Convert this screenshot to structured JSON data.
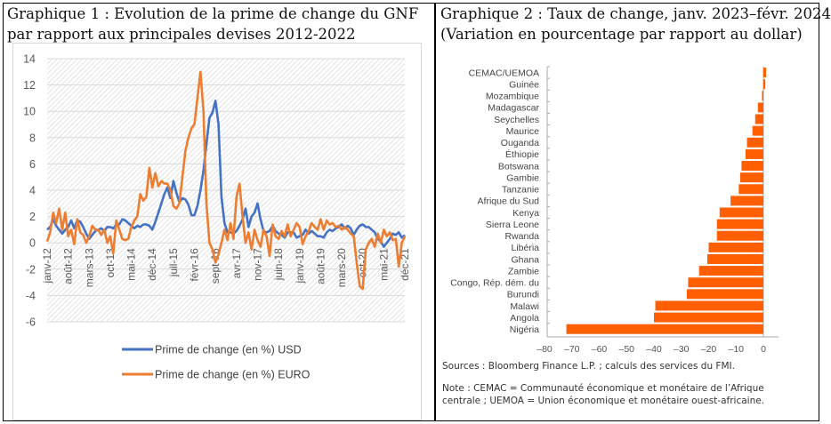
{
  "titles": {
    "chart1_line1": "Graphique 1 : Evolution de la prime de change du GNF",
    "chart1_line2": "par rapport aux principales devises 2012-2022",
    "chart2_line1": "Graphique 2 : Taux de change, janv. 2023–févr. 2024",
    "chart2_line2": "(Variation en pourcentage par rapport au dollar)"
  },
  "chart_data": [
    {
      "type": "line",
      "title": "Evolution de la prime de change du GNF par rapport aux principales devises 2012-2022",
      "xlabel": "",
      "ylabel": "",
      "ylim": [
        -6,
        14
      ],
      "yticks": [
        14,
        12,
        10,
        8,
        6,
        4,
        2,
        0,
        -2,
        -4,
        -6
      ],
      "xtick_labels": [
        "janv-12",
        "août-12",
        "mars-13",
        "oct-13",
        "mai-14",
        "déc-14",
        "juil-15",
        "févr-16",
        "sept-16",
        "avr-17",
        "nov-17",
        "juin-18",
        "janv-19",
        "août-19",
        "mars-20",
        "oct-20",
        "mai-21",
        "déc-21"
      ],
      "x_start": "janv-12",
      "x_step": "month",
      "grid": true,
      "legend_position": "bottom",
      "colors": {
        "usd": "#4472c4",
        "euro": "#ed7d31"
      },
      "series": [
        {
          "name": "Prime de change (en %) USD",
          "values": [
            1.0,
            1.2,
            1.8,
            1.3,
            1.0,
            0.7,
            1.0,
            1.2,
            1.7,
            1.1,
            1.7,
            1.6,
            1.2,
            0.7,
            0.3,
            0.6,
            0.9,
            1.0,
            1.1,
            0.9,
            1.2,
            1.2,
            1.1,
            1.4,
            1.4,
            1.8,
            1.7,
            1.5,
            1.3,
            1.1,
            1.3,
            1.2,
            1.4,
            1.4,
            1.3,
            1.0,
            1.6,
            2.3,
            3.0,
            3.7,
            4.2,
            3.4,
            4.7,
            3.8,
            3.1,
            3.4,
            3.3,
            2.9,
            2.1,
            2.1,
            2.8,
            4.0,
            5.5,
            7.5,
            9.5,
            9.9,
            10.8,
            9.0,
            3.5,
            1.5,
            0.8,
            0.8,
            0.7,
            0.9,
            1.3,
            1.8,
            2.6,
            1.2,
            2.0,
            2.3,
            3.0,
            1.8,
            0.9,
            0.8,
            0.9,
            1.3,
            0.9,
            0.7,
            0.6,
            0.4,
            0.8,
            0.8,
            0.8,
            0.4,
            0.5,
            0.6,
            1.0,
            0.7,
            0.9,
            0.7,
            0.5,
            0.5,
            0.4,
            0.8,
            1.0,
            0.9,
            1.1,
            1.2,
            1.4,
            1.1,
            1.3,
            1.1,
            0.6,
            1.0,
            1.3,
            1.4,
            1.2,
            1.2,
            1.0,
            0.8,
            0.3,
            0.1,
            -0.3,
            0.0,
            0.3,
            0.7,
            0.6,
            0.8,
            0.4,
            0.6
          ]
        },
        {
          "name": "Prime de change (en %) EURO",
          "values": [
            0.1,
            0.8,
            2.3,
            1.5,
            2.6,
            1.0,
            2.3,
            0.5,
            1.0,
            -0.1,
            1.8,
            0.8,
            0.6,
            0.0,
            0.5,
            1.3,
            1.0,
            1.0,
            0.6,
            1.0,
            0.0,
            0.5,
            -0.8,
            1.7,
            1.0,
            0.3,
            0.2,
            0.3,
            1.2,
            1.7,
            2.0,
            3.7,
            3.2,
            3.5,
            5.7,
            4.2,
            5.3,
            4.3,
            4.7,
            4.5,
            4.5,
            4.0,
            2.8,
            2.6,
            3.0,
            5.0,
            7.0,
            8.0,
            8.7,
            9.0,
            11.0,
            13.0,
            10.0,
            3.0,
            0.0,
            -0.5,
            -1.5,
            -0.9,
            0.0,
            1.0,
            0.2,
            1.5,
            0.3,
            3.5,
            4.5,
            2.0,
            0.0,
            0.8,
            -0.5,
            1.0,
            0.2,
            -0.3,
            1.0,
            0.5,
            -1.0,
            1.4,
            0.5,
            0.3,
            0.9,
            0.5,
            1.4,
            0.5,
            1.0,
            1.5,
            1.2,
            -0.1,
            0.5,
            0.9,
            1.5,
            1.2,
            1.0,
            1.8,
            1.0,
            1.7,
            1.4,
            1.5,
            1.2,
            1.3,
            1.0,
            1.2,
            1.0,
            0.7,
            0.5,
            -1.5,
            -3.3,
            -3.5,
            -0.5,
            0.0,
            0.3,
            -0.3,
            0.7,
            0.0,
            1.0,
            0.5,
            0.8,
            0.2,
            0.3,
            -1.8,
            0.0,
            0.5
          ]
        }
      ]
    },
    {
      "type": "bar",
      "orientation": "horizontal",
      "title": "Taux de change, janv. 2023–févr. 2024 (Variation en pourcentage par rapport au dollar)",
      "xlabel": "",
      "ylabel": "",
      "xlim": [
        -80,
        0
      ],
      "xticks": [
        "–80",
        "–70",
        "–60",
        "–50",
        "–40",
        "–30",
        "–20",
        "–10",
        "0"
      ],
      "grid": false,
      "color": "#ff5f00",
      "categories": [
        "CEMAC/UEMOA",
        "Guinée",
        "Mozambique",
        "Madagascar",
        "Seychelles",
        "Maurice",
        "Ouganda",
        "Éthiopie",
        "Botswana",
        "Gambie",
        "Tanzanie",
        "Afrique du Sud",
        "Kenya",
        "Sierra Leone",
        "Rwanda",
        "Libéria",
        "Ghana",
        "Zambie",
        "Congo, Rép. dém. du",
        "Burundi",
        "Malawi",
        "Angola",
        "Nigéria"
      ],
      "values": [
        1.0,
        0.7,
        -0.5,
        -2.0,
        -3.0,
        -4.0,
        -6.0,
        -6.5,
        -8.0,
        -8.5,
        -9.0,
        -12.0,
        -16.0,
        -17.0,
        -17.0,
        -20.0,
        -20.5,
        -23.5,
        -27.5,
        -28.0,
        -39.5,
        -40.0,
        -72.0
      ]
    }
  ],
  "footnotes": {
    "sources": "Sources : Bloomberg Finance L.P. ; calculs des services du FMI.",
    "note_line1": "Note : CEMAC = Communauté économique et monétaire de l’Afrique",
    "note_line2": "centrale ; UEMOA = Union économique et monétaire ouest-africaine."
  }
}
